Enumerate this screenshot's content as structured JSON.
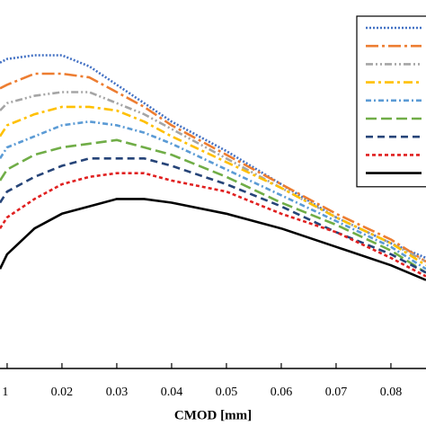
{
  "chart_data": {
    "type": "line",
    "x_label": "CMOD [mm]",
    "x": [
      0.0087,
      0.01,
      0.015,
      0.02,
      0.025,
      0.03,
      0.035,
      0.04,
      0.05,
      0.06,
      0.07,
      0.08,
      0.0864
    ],
    "xlim": [
      0.0087,
      0.0864
    ],
    "xticks": [
      {
        "value": 0.01,
        "label": "1"
      },
      0.02,
      0.03,
      0.04,
      0.05,
      0.06,
      0.07,
      0.08
    ],
    "ylim": [
      0,
      100
    ],
    "legend": "upper right",
    "series": [
      {
        "color": "#4472c4",
        "dash": "2,2",
        "values": [
          83,
          84,
          85,
          85,
          82,
          77,
          72,
          67,
          59,
          50,
          41,
          34,
          30
        ]
      },
      {
        "color": "#ed7d31",
        "dash": "14,4,3,4",
        "values": [
          76,
          77,
          80,
          80,
          79,
          75,
          71,
          66,
          58,
          50,
          42,
          35,
          29
        ]
      },
      {
        "color": "#a5a5a5",
        "dash": "8,3,2,3,2,3",
        "values": [
          70,
          72,
          74,
          75,
          75,
          72,
          69,
          65,
          57,
          49,
          41,
          34,
          29
        ]
      },
      {
        "color": "#ffc000",
        "dash": "10,4,3,4",
        "values": [
          63,
          66,
          69,
          71,
          71,
          70,
          67,
          63,
          56,
          49,
          41,
          34,
          28
        ]
      },
      {
        "color": "#5b9bd5",
        "dash": "6,3,2,3",
        "values": [
          57,
          60,
          63,
          66,
          67,
          66,
          64,
          61,
          54,
          47,
          40,
          33,
          27
        ]
      },
      {
        "color": "#70ad47",
        "dash": "12,5",
        "values": [
          51,
          54,
          58,
          60,
          61,
          62,
          60,
          58,
          52,
          45,
          39,
          32,
          26
        ]
      },
      {
        "color": "#264478",
        "dash": "8,5",
        "values": [
          45,
          48,
          52,
          55,
          57,
          57,
          57,
          55,
          50,
          44,
          37,
          31,
          26
        ]
      },
      {
        "color": "#e02020",
        "dash": "4,3",
        "values": [
          38,
          41,
          46,
          50,
          52,
          53,
          53,
          51,
          48,
          42,
          37,
          30,
          25
        ]
      },
      {
        "color": "#000000",
        "dash": "",
        "values": [
          27,
          31,
          38,
          42,
          44,
          46,
          46,
          45,
          42,
          38,
          33,
          28,
          24
        ]
      }
    ]
  }
}
